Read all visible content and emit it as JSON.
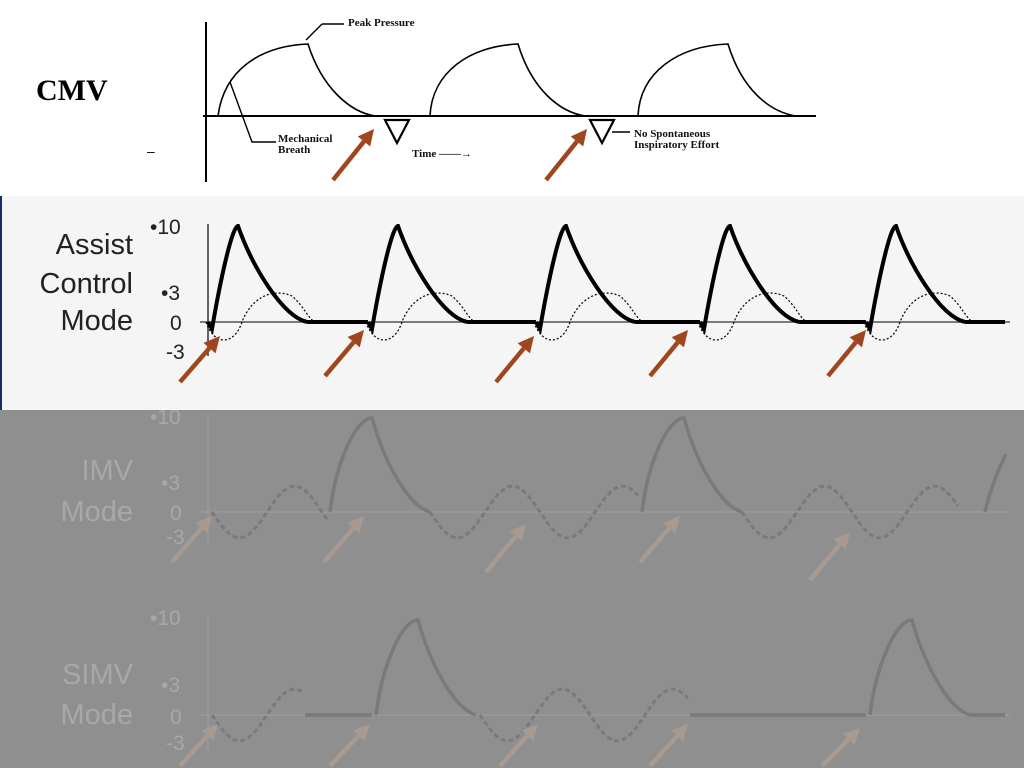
{
  "cmv": {
    "title": "CMV",
    "dash": "–",
    "peak_label": "Peak Pressure",
    "mechanical_label_1": "Mechanical",
    "mechanical_label_2": "Breath",
    "time_label": "Time ——→",
    "no_effort_label_1": "No Spontaneous",
    "no_effort_label_2": "Inspiratory Effort"
  },
  "assist_control": {
    "label_lines": [
      "Assist",
      "Control",
      "Mode"
    ],
    "ticks": [
      "•10",
      "•3",
      "0",
      "-3"
    ]
  },
  "imv": {
    "label_lines": [
      "IMV",
      "Mode"
    ],
    "ticks": [
      "•10",
      "•3",
      "0",
      "-3"
    ]
  },
  "simv": {
    "label_lines": [
      "SIMV",
      "Mode"
    ],
    "ticks": [
      "•10",
      "•3",
      "0",
      "-3"
    ]
  },
  "colors": {
    "arrow": "#a0461f",
    "arrow_dim": "#a89a90",
    "waveform": "#000000",
    "waveform_dim": "#7a7a7a",
    "dim_background": "#8f8f8f"
  }
}
